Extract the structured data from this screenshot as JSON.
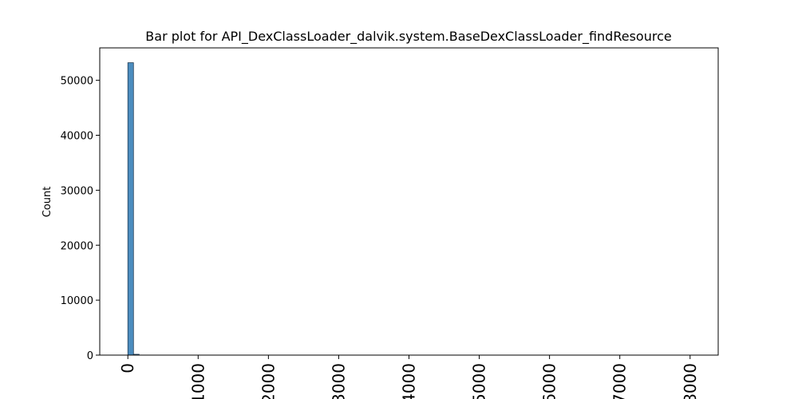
{
  "chart_data": {
    "type": "bar",
    "title": "Bar plot for API_DexClassLoader_dalvik.system.BaseDexClassLoader_findResource",
    "xlabel": "",
    "ylabel": "Count",
    "xlim": [
      -400,
      8400
    ],
    "ylim": [
      0,
      55900
    ],
    "yticks": [
      0,
      10000,
      20000,
      30000,
      40000,
      50000
    ],
    "xticks": [
      0,
      1000,
      2000,
      3000,
      4000,
      5000,
      6000,
      7000,
      8000
    ],
    "xtick_labels": [
      "0",
      "1000",
      "2000",
      "3000",
      "4000",
      "5000",
      "6000",
      "7000",
      "8000"
    ],
    "bin_width": 80,
    "bars": [
      {
        "x": 0,
        "value": 53200
      },
      {
        "x": 80,
        "value": 150
      }
    ],
    "bar_color": "#4c8dbf",
    "bar_edge_color": "#1f3b55",
    "grid": false
  }
}
